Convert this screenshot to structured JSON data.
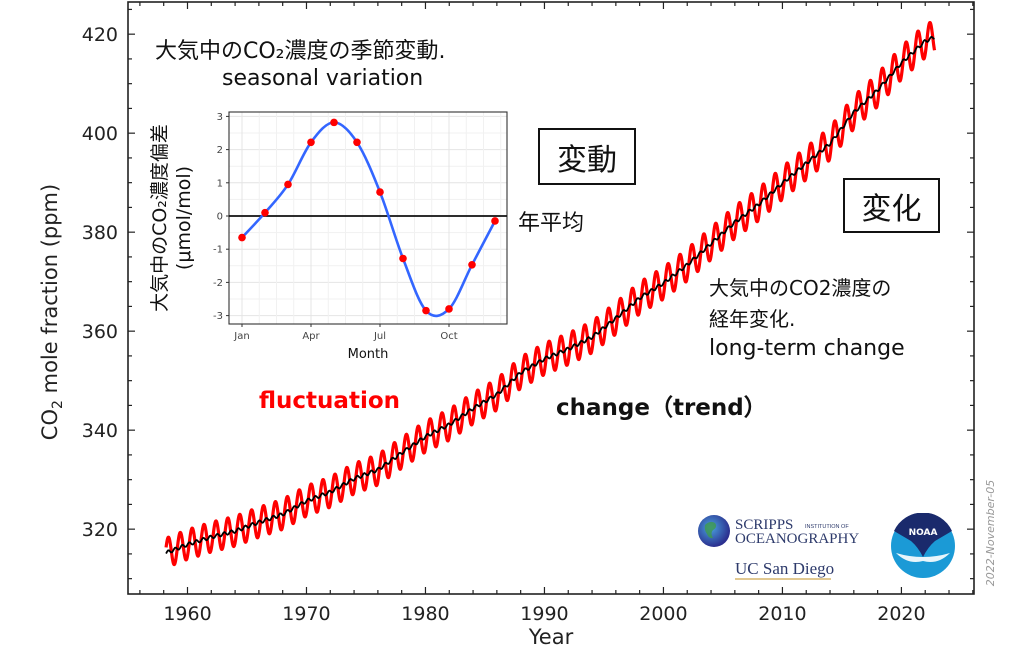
{
  "chart_data": {
    "type": "line",
    "title": "",
    "xlabel": "Year",
    "ylabel": "CO2 mole fraction (ppm)",
    "xlim": [
      1955,
      2026.1
    ],
    "ylim": [
      306.9,
      426.5
    ],
    "grid": false,
    "x_ticks": [
      1960,
      1970,
      1980,
      1990,
      2000,
      2010,
      2020
    ],
    "y_ticks": [
      320,
      340,
      360,
      380,
      400,
      420
    ],
    "series": [
      {
        "name": "fluctuation",
        "color": "#ff0000",
        "description": "monthly mean with seasonal cycle",
        "seasonal_amplitude_ppm": 3.0
      },
      {
        "name": "change (trend)",
        "color": "#000000",
        "description": "seasonally adjusted trend",
        "x": [
          1958.2,
          1960,
          1962,
          1964,
          1966,
          1968,
          1970,
          1972,
          1974,
          1976,
          1978,
          1980,
          1982,
          1984,
          1986,
          1988,
          1990,
          1992,
          1994,
          1996,
          1998,
          2000,
          2002,
          2004,
          2006,
          2008,
          2010,
          2012,
          2014,
          2016,
          2018,
          2020,
          2022,
          2022.8
        ],
        "values": [
          315.2,
          316.9,
          318.4,
          319.6,
          321.4,
          323.0,
          325.7,
          327.5,
          330.2,
          332.0,
          335.4,
          338.7,
          341.1,
          344.4,
          347.2,
          351.6,
          354.4,
          356.4,
          358.8,
          362.6,
          366.7,
          369.7,
          373.4,
          377.7,
          382.0,
          385.6,
          389.9,
          393.9,
          397.9,
          404.2,
          408.7,
          414.2,
          418.6,
          419.4
        ]
      }
    ],
    "annotations": {
      "fluctuation_label": "fluctuation",
      "trend_label": "change（trend）",
      "seasonal_title_jp": "大気中のCO₂濃度の季節変動.",
      "seasonal_title_en": "seasonal variation",
      "hendou_box": "変動",
      "henka_box": "変化",
      "annual_mean_label": "年平均",
      "longterm_jp_1": "大気中のCO2濃度の",
      "longterm_jp_2": "経年変化.",
      "longterm_en": "long-term change",
      "date_stamp": "2022-November-05"
    },
    "inset": {
      "type": "line",
      "xlabel": "Month",
      "ylabel_1": "大気中のCO₂濃度偏差",
      "ylabel_2": "(μmol/mol)",
      "x_tick_labels": [
        "Jan",
        "Apr",
        "Jul",
        "Oct"
      ],
      "y_ticks": [
        -3,
        -2,
        -1,
        0,
        1,
        2,
        3
      ],
      "ylim": [
        -3.25,
        3.05
      ],
      "months": [
        "Jan",
        "Feb",
        "Mar",
        "Apr",
        "May",
        "Jun",
        "Jul",
        "Aug",
        "Sep",
        "Oct",
        "Nov",
        "Dec"
      ],
      "values": [
        -0.65,
        0.1,
        0.95,
        2.22,
        2.82,
        2.22,
        0.72,
        -1.28,
        -2.85,
        -2.8,
        -1.47,
        -0.15
      ],
      "line_color": "#3366ff",
      "point_color": "#ff0000",
      "reference_line": 0
    }
  },
  "logos": {
    "scripps_1": "SCRIPPS",
    "scripps_inst": "INSTITUTION OF",
    "scripps_2": "OCEANOGRAPHY",
    "ucsd": "UC San Diego",
    "noaa": "NOAA"
  }
}
